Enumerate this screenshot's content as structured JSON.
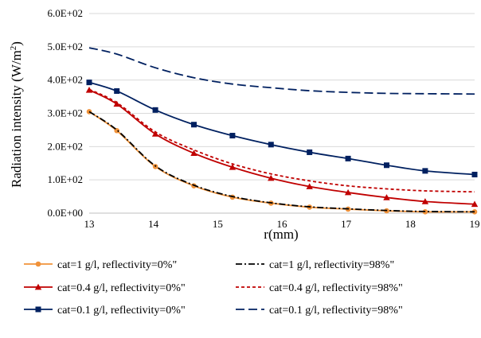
{
  "chart_data": {
    "type": "line",
    "title": "",
    "xlabel": "r(mm)",
    "ylabel_main": "Radiation intensity (W/m",
    "ylabel_sup": "2",
    "ylabel_tail": ")",
    "xlim": [
      13,
      19
    ],
    "ylim": [
      0,
      600
    ],
    "x_ticks": [
      13,
      14,
      15,
      16,
      17,
      18,
      19
    ],
    "y_ticks": [
      {
        "value": 0,
        "label": "0.0E+00"
      },
      {
        "value": 100,
        "label": "1.0E+02"
      },
      {
        "value": 200,
        "label": "2.0E+02"
      },
      {
        "value": 300,
        "label": "3.0E+02"
      },
      {
        "value": 400,
        "label": "4.0E+02"
      },
      {
        "value": 500,
        "label": "5.0E+02"
      },
      {
        "value": 600,
        "label": "6.0E+02"
      }
    ],
    "grid": "horizontal",
    "legend_position": "bottom",
    "series": [
      {
        "name": "cat=1 g/l, reflectivity=0%\"",
        "color": "#f0923a",
        "dash": "solid",
        "marker": "circle",
        "x": [
          13,
          13.43,
          14.03,
          14.63,
          15.23,
          15.83,
          16.43,
          17.03,
          17.63,
          18.23,
          19
        ],
        "y": [
          305,
          248,
          140,
          82,
          48,
          30,
          18,
          12,
          7,
          4,
          4
        ]
      },
      {
        "name": "cat=1 g/l, reflectivity=98%\"",
        "color": "#000000",
        "dash": "dashdot",
        "marker": "none",
        "x": [
          13,
          13.43,
          14.03,
          14.63,
          15.23,
          15.83,
          16.43,
          17.03,
          17.63,
          18.23,
          19
        ],
        "y": [
          305,
          250,
          142,
          84,
          50,
          31,
          19,
          13,
          8,
          5,
          4
        ]
      },
      {
        "name": "cat=0.4 g/l, reflectivity=0%\"",
        "color": "#c00000",
        "dash": "solid",
        "marker": "triangle",
        "x": [
          13,
          13.43,
          14.03,
          14.63,
          15.23,
          15.83,
          16.43,
          17.03,
          17.63,
          18.23,
          19
        ],
        "y": [
          370,
          328,
          238,
          180,
          138,
          105,
          80,
          62,
          47,
          35,
          27
        ]
      },
      {
        "name": "cat=0.4 g/l, reflectivity=98%\"",
        "color": "#c00000",
        "dash": "dash",
        "marker": "none",
        "x": [
          13,
          13.43,
          14.03,
          14.63,
          15.23,
          15.83,
          16.43,
          17.03,
          17.63,
          18.23,
          19
        ],
        "y": [
          372,
          332,
          244,
          190,
          148,
          118,
          97,
          82,
          73,
          67,
          64
        ]
      },
      {
        "name": "cat=0.1 g/l, reflectivity=0%\"",
        "color": "#002060",
        "dash": "solid",
        "marker": "square",
        "x": [
          13,
          13.43,
          14.03,
          14.63,
          15.23,
          15.83,
          16.43,
          17.03,
          17.63,
          18.23,
          19
        ],
        "y": [
          393,
          367,
          310,
          266,
          233,
          206,
          183,
          164,
          144,
          127,
          116
        ]
      },
      {
        "name": "cat=0.1 g/l, reflectivity=98%\"",
        "color": "#002060",
        "dash": "longdash",
        "marker": "none",
        "x": [
          13,
          13.43,
          14.03,
          14.63,
          15.23,
          15.83,
          16.43,
          17.03,
          17.63,
          18.23,
          19
        ],
        "y": [
          497,
          478,
          437,
          407,
          388,
          377,
          368,
          363,
          360,
          359,
          358
        ]
      }
    ]
  }
}
